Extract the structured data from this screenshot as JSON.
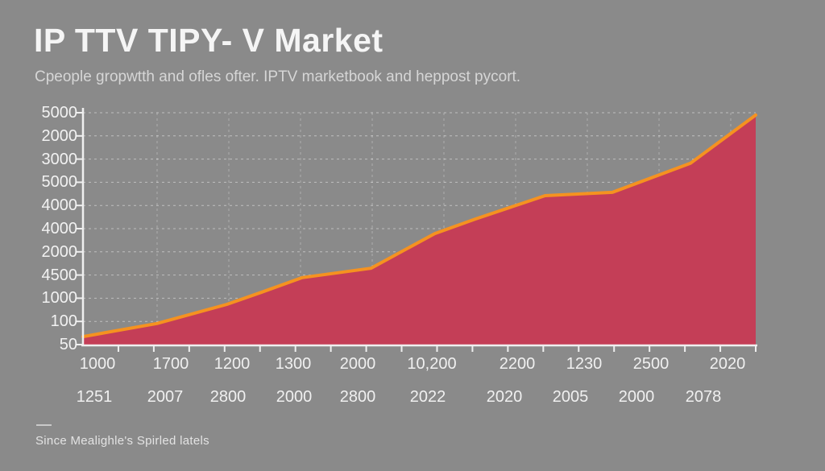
{
  "page": {
    "title": "IP TTV TIPY- V Market",
    "subtitle": "Cpeople gropwtth and ofles ofter. IPTV marketbook and heppost pycort.",
    "footnote": "Since Mealighle's Spirled latels"
  },
  "colors": {
    "background": "#8a8a8a",
    "area_fill": "#c43e57",
    "line": "#f59220",
    "axis": "#efefef",
    "grid": "#ffffff",
    "text_primary": "#f2f2f2",
    "text_muted": "#d6d6d6"
  },
  "chart_data": {
    "type": "area",
    "title": "IP TTV TIPY- V Market",
    "subtitle": "Cpeople gropwtth and ofles ofter. IPTV marketbook and heppost pycort.",
    "grid": true,
    "legend": "none",
    "ylim": [
      50,
      5000
    ],
    "y_tick_labels": [
      "5000",
      "2000",
      "3000",
      "5000",
      "4000",
      "4000",
      "2000",
      "4500",
      "1000",
      "100",
      "50"
    ],
    "x_tick_labels_row1": [
      "1000",
      "1700",
      "1200",
      "1300",
      "2000",
      "10,200",
      "2200",
      "1230",
      "2500",
      "2020"
    ],
    "x_tick_labels_row2": [
      "1251",
      "2007",
      "2800",
      "2000",
      "2800",
      "2022",
      "2020",
      "2005",
      "2000",
      "2078"
    ],
    "series": [
      {
        "line_color": "#f59220",
        "fill_color": "#c43e57",
        "points": [
          [
            0.0,
            220
          ],
          [
            0.11,
            500
          ],
          [
            0.214,
            910
          ],
          [
            0.266,
            1170
          ],
          [
            0.326,
            1480
          ],
          [
            0.428,
            1680
          ],
          [
            0.523,
            2420
          ],
          [
            0.583,
            2730
          ],
          [
            0.687,
            3230
          ],
          [
            0.787,
            3300
          ],
          [
            0.903,
            3920
          ],
          [
            1.0,
            4950
          ]
        ]
      }
    ]
  }
}
